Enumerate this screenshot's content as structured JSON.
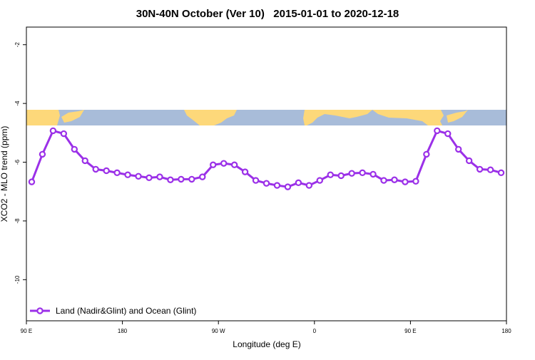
{
  "chart_data": {
    "type": "line",
    "title": "30N-40N October (Ver 10)   2015-01-01 to 2020-12-18",
    "x_label": "Longitude (deg E)",
    "y_label": "XCO2 - MLO trend (ppm)",
    "x": [
      95,
      105,
      115,
      125,
      135,
      145,
      155,
      165,
      175,
      185,
      195,
      205,
      215,
      225,
      235,
      245,
      255,
      265,
      275,
      285,
      295,
      305,
      315,
      325,
      335,
      345,
      355,
      365,
      375,
      385,
      395,
      405,
      415,
      425,
      435,
      445,
      455,
      465,
      475,
      485,
      495,
      505,
      515,
      525,
      535
    ],
    "series": [
      {
        "name": "Land (Nadir&Glint) and Ocean (Glint)",
        "color": "#9b30e8",
        "values": [
          -6.67,
          -5.73,
          -4.93,
          -5.03,
          -5.56,
          -5.95,
          -6.24,
          -6.29,
          -6.36,
          -6.43,
          -6.48,
          -6.53,
          -6.5,
          -6.6,
          -6.58,
          -6.58,
          -6.5,
          -6.09,
          -6.04,
          -6.09,
          -6.33,
          -6.62,
          -6.72,
          -6.79,
          -6.84,
          -6.7,
          -6.79,
          -6.62,
          -6.43,
          -6.46,
          -6.38,
          -6.36,
          -6.41,
          -6.62,
          -6.6,
          -6.67,
          -6.65,
          -5.73,
          -4.93,
          -5.03,
          -5.56,
          -5.95,
          -6.24,
          -6.26,
          -6.36
        ]
      }
    ],
    "xlim": [
      90,
      540
    ],
    "xticks": [
      {
        "value": 90,
        "label": "90 E"
      },
      {
        "value": 180,
        "label": "180"
      },
      {
        "value": 270,
        "label": "90 W"
      },
      {
        "value": 360,
        "label": "0"
      },
      {
        "value": 450,
        "label": "90 E"
      },
      {
        "value": 540,
        "label": "180"
      }
    ],
    "ylim": [
      -11.4,
      -1.4
    ],
    "yticks": [
      -2,
      -4,
      -6,
      -8,
      -10
    ],
    "legend": "bottom-left"
  }
}
